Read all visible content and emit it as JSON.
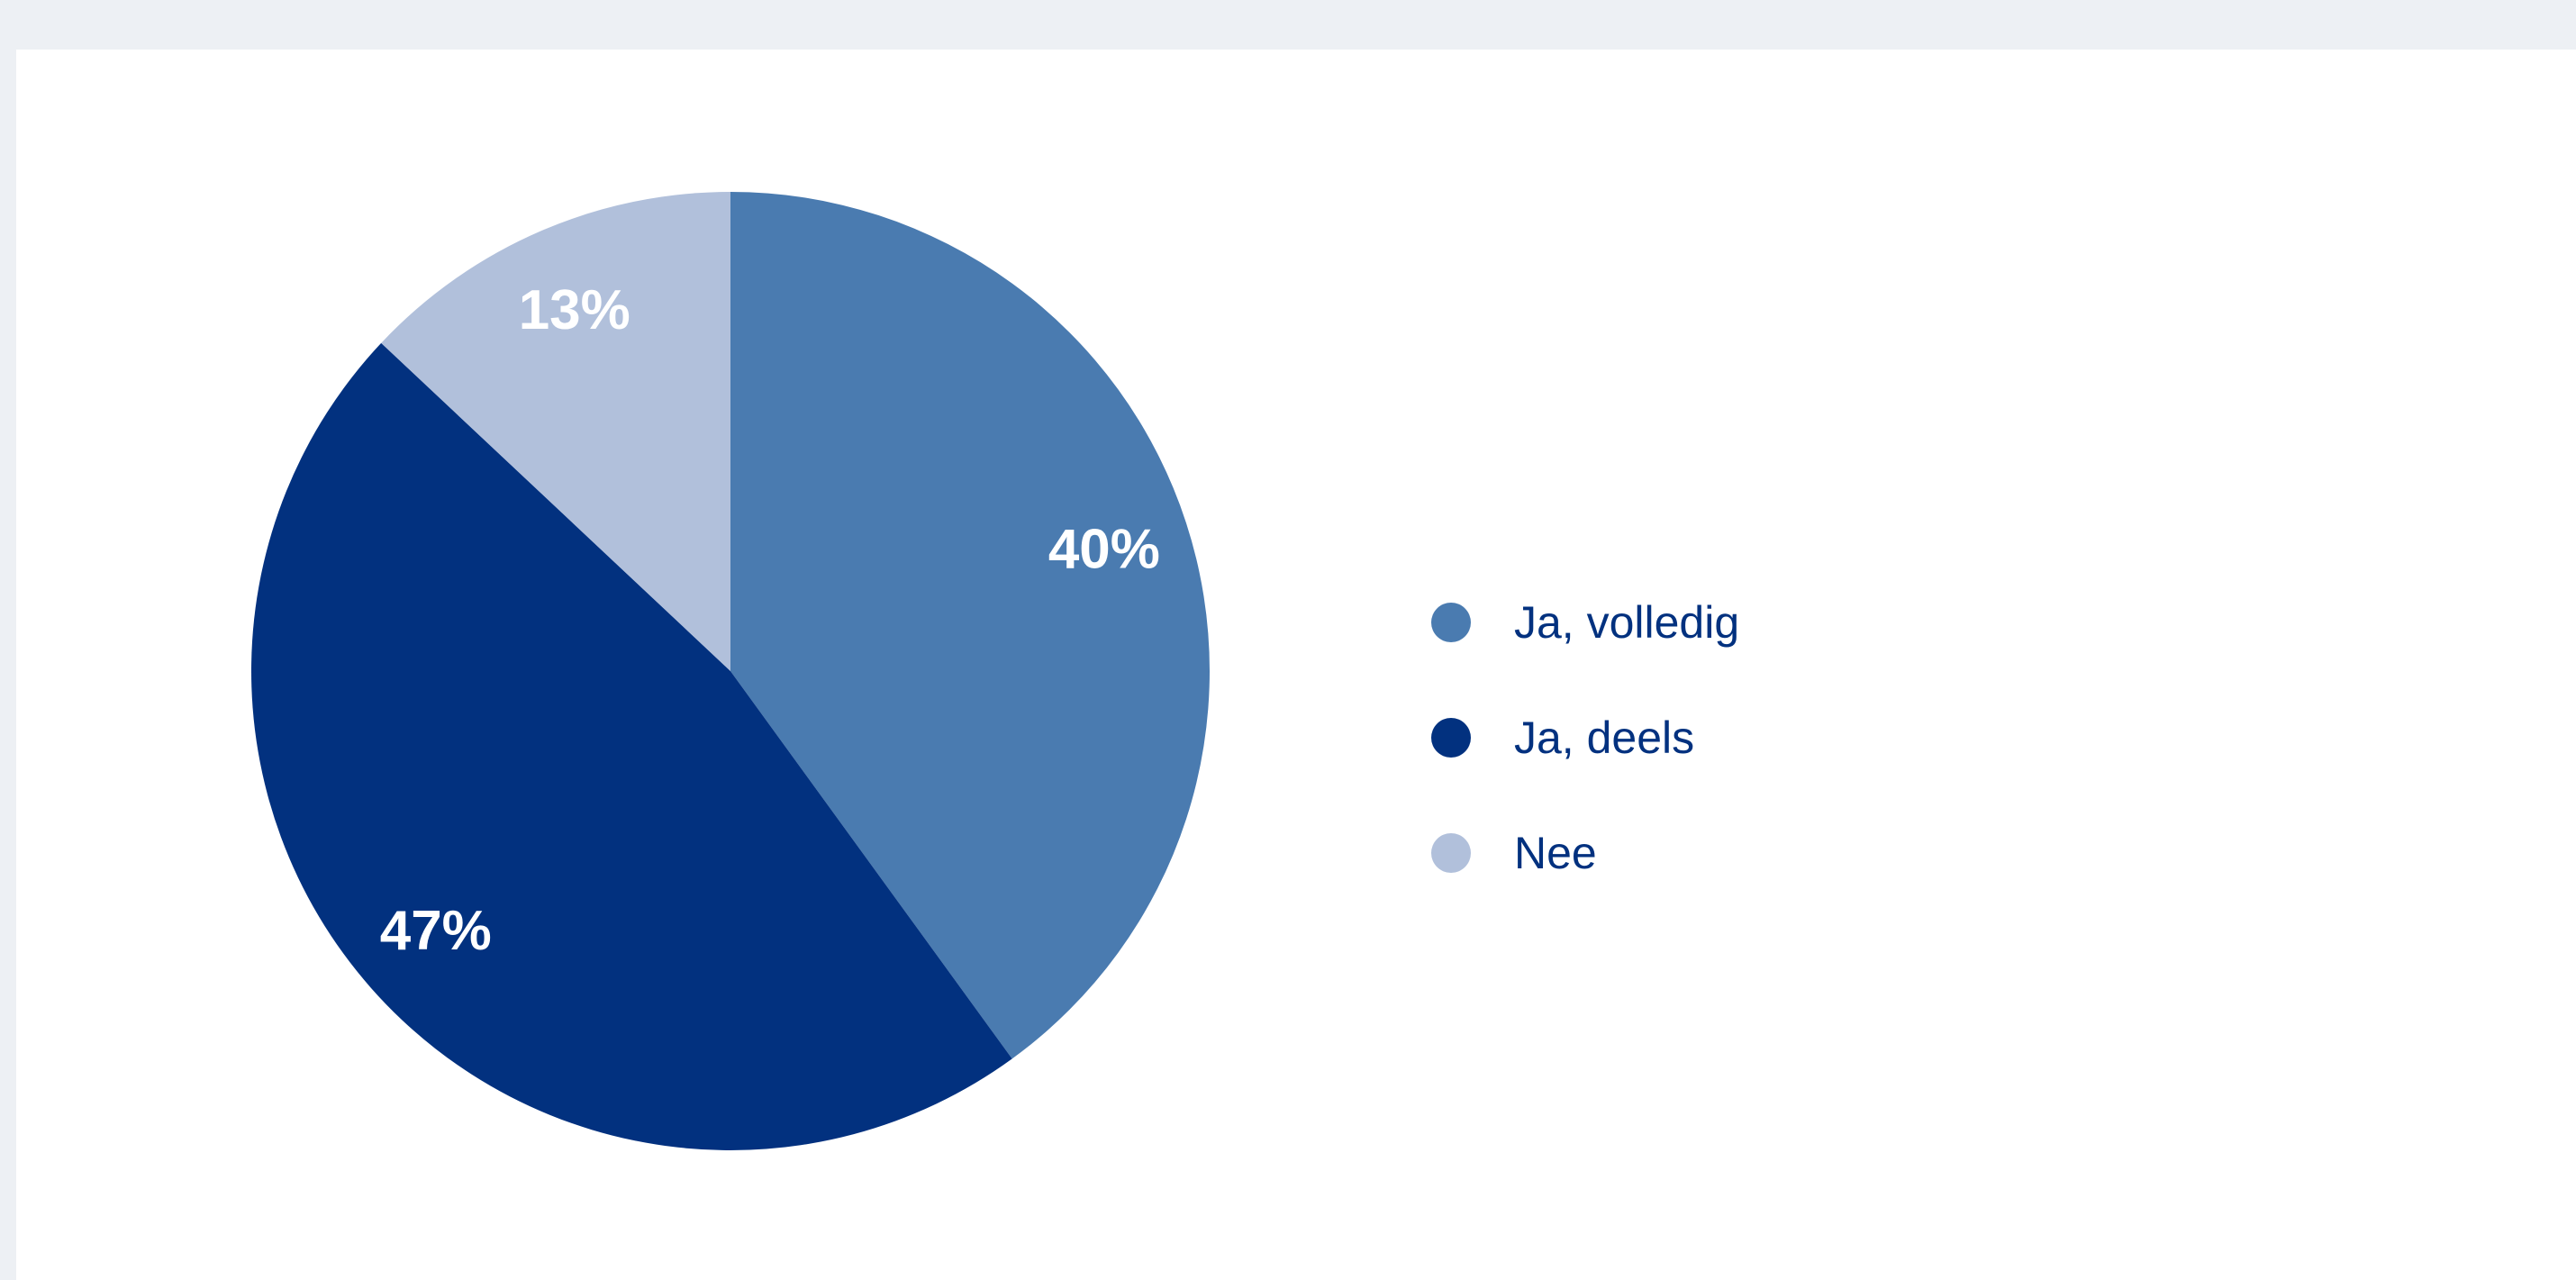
{
  "colors": {
    "background": "#edf0f4",
    "card": "#ffffff",
    "label_text": "#ffffff",
    "legend_text": "#02317f"
  },
  "chart_data": {
    "type": "pie",
    "title": "",
    "legend_position": "right",
    "slices": [
      {
        "label": "Ja, volledig",
        "value": 40,
        "display": "40%",
        "color": "#4a7bb0"
      },
      {
        "label": "Ja, deels",
        "value": 47,
        "display": "47%",
        "color": "#02317f"
      },
      {
        "label": "Nee",
        "value": 13,
        "display": "13%",
        "color": "#b1c0db"
      }
    ]
  }
}
